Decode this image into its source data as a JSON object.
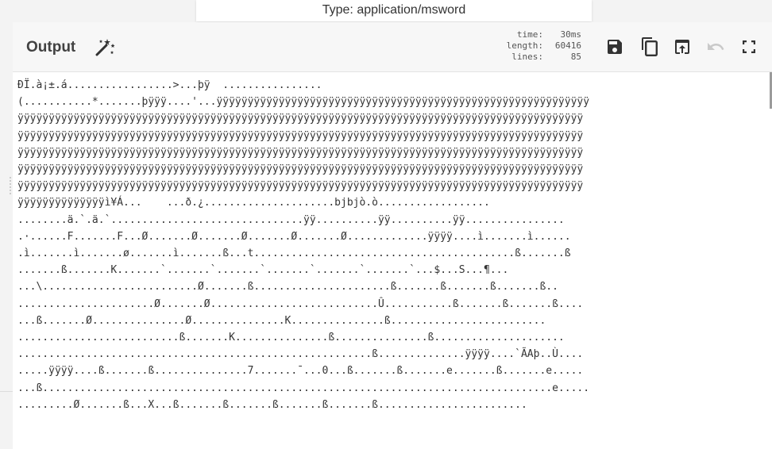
{
  "tooltip": {
    "text": "Type: application/msword"
  },
  "output_panel": {
    "title": "Output",
    "magic_icon": "magic-wand-icon",
    "stats": {
      "time_label": "time:",
      "time_value": "30ms",
      "length_label": "length:",
      "length_value": "60416",
      "lines_label": "lines:",
      "lines_value": "85"
    },
    "toolbar_icons": [
      "save-icon",
      "copy-icon",
      "replace-input-icon",
      "undo-icon",
      "fullscreen-icon"
    ],
    "content_lines": [
      "ÐÏ.à¡±.á.................>...þÿ  ................",
      "(...........*.......þÿÿÿ....'...ÿÿÿÿÿÿÿÿÿÿÿÿÿÿÿÿÿÿÿÿÿÿÿÿÿÿÿÿÿÿÿÿÿÿÿÿÿÿÿÿÿÿÿÿÿÿÿÿÿÿÿÿÿÿÿÿÿÿÿÿ",
      "ÿÿÿÿÿÿÿÿÿÿÿÿÿÿÿÿÿÿÿÿÿÿÿÿÿÿÿÿÿÿÿÿÿÿÿÿÿÿÿÿÿÿÿÿÿÿÿÿÿÿÿÿÿÿÿÿÿÿÿÿÿÿÿÿÿÿÿÿÿÿÿÿÿÿÿÿÿÿÿÿÿÿÿÿÿÿÿÿÿÿÿ",
      "ÿÿÿÿÿÿÿÿÿÿÿÿÿÿÿÿÿÿÿÿÿÿÿÿÿÿÿÿÿÿÿÿÿÿÿÿÿÿÿÿÿÿÿÿÿÿÿÿÿÿÿÿÿÿÿÿÿÿÿÿÿÿÿÿÿÿÿÿÿÿÿÿÿÿÿÿÿÿÿÿÿÿÿÿÿÿÿÿÿÿÿ",
      "ÿÿÿÿÿÿÿÿÿÿÿÿÿÿÿÿÿÿÿÿÿÿÿÿÿÿÿÿÿÿÿÿÿÿÿÿÿÿÿÿÿÿÿÿÿÿÿÿÿÿÿÿÿÿÿÿÿÿÿÿÿÿÿÿÿÿÿÿÿÿÿÿÿÿÿÿÿÿÿÿÿÿÿÿÿÿÿÿÿÿÿ",
      "ÿÿÿÿÿÿÿÿÿÿÿÿÿÿÿÿÿÿÿÿÿÿÿÿÿÿÿÿÿÿÿÿÿÿÿÿÿÿÿÿÿÿÿÿÿÿÿÿÿÿÿÿÿÿÿÿÿÿÿÿÿÿÿÿÿÿÿÿÿÿÿÿÿÿÿÿÿÿÿÿÿÿÿÿÿÿÿÿÿÿÿ",
      "ÿÿÿÿÿÿÿÿÿÿÿÿÿÿÿÿÿÿÿÿÿÿÿÿÿÿÿÿÿÿÿÿÿÿÿÿÿÿÿÿÿÿÿÿÿÿÿÿÿÿÿÿÿÿÿÿÿÿÿÿÿÿÿÿÿÿÿÿÿÿÿÿÿÿÿÿÿÿÿÿÿÿÿÿÿÿÿÿÿÿÿ",
      "ÿÿÿÿÿÿÿÿÿÿÿÿÿÿì¥Á...    ...ð.¿.....................bjbjò.ò..................",
      "........ä.`.ä.`...............................ÿÿ..........ÿÿ..........ÿÿ................",
      ".·......F.......F...Ø.......Ø.......Ø.......Ø.......Ø.............ÿÿÿÿ....ì.......ì......",
      ".ì.......ì.......ø.......ì.......ß...t..........................................ß.......ß",
      ".......ß.......K.......`.......`.......`.......`.......`.......`...$...S...¶...",
      "...\\.........................Ø.......ß......................ß.......ß.......ß.......ß..",
      "......................Ø.......Ø...........................Û...........ß.......ß.......ß....",
      "...ß.......Ø...............Ø...............K...............ß.........................",
      "..........................ß.......K...............ß...............ß.....................",
      ".........................................................ß..............ÿÿÿÿ....`ÃAþ..Ù....",
      ".....ÿÿÿÿ....ß.......ß...............7.......¯...0...ß.......ß.......e.......ß.......e.....",
      "...ß..................................................................................e.....",
      ".........Ø.......ß...X...ß.......ß.......ß.......ß.......ß........................"
    ]
  }
}
